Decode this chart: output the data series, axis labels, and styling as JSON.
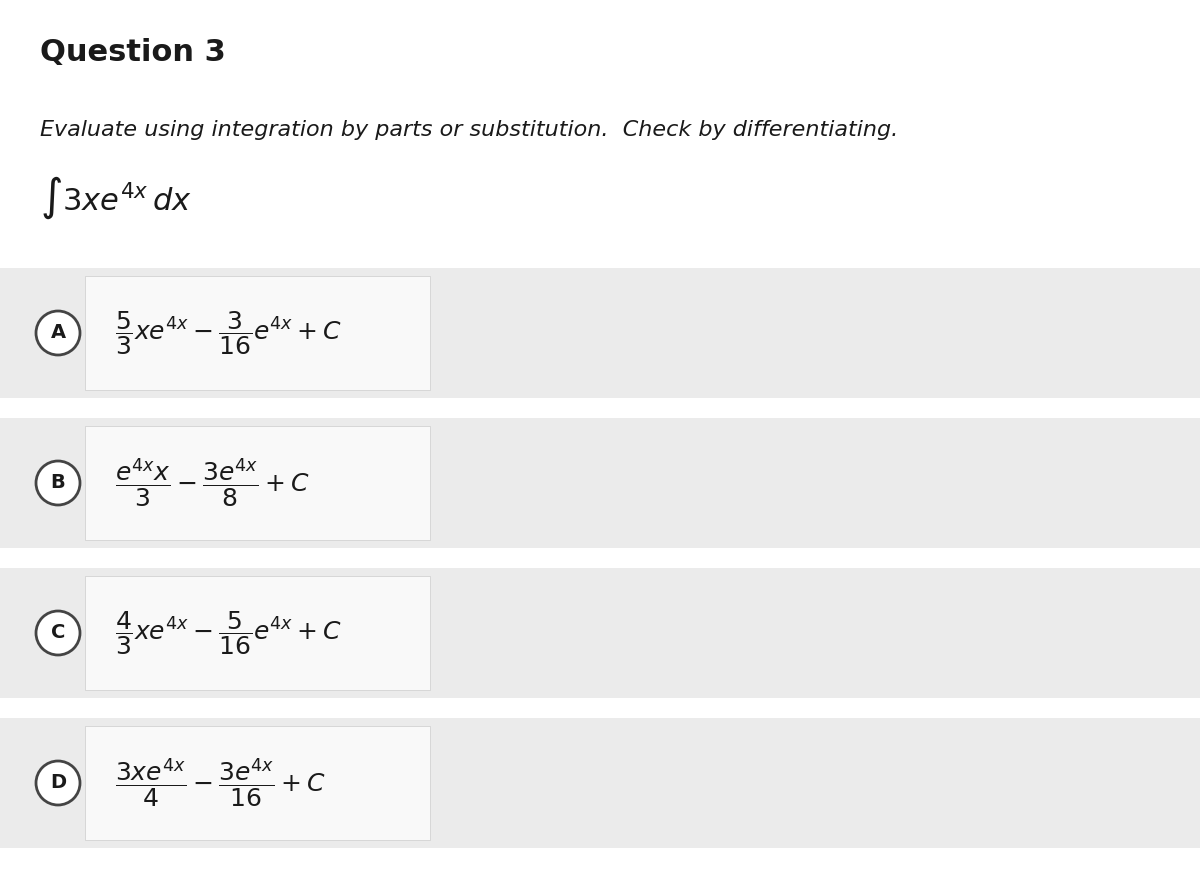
{
  "title": "Question 3",
  "instruction": "Evaluate using integration by parts or substitution.  Check by differentiating.",
  "integral": "$\\int 3xe^{4x}\\, dx$",
  "background_color": "#ffffff",
  "row_bg_color": "#ebebeb",
  "box_bg_color": "#f5f5f5",
  "box_border_color": "#cccccc",
  "title_fontsize": 22,
  "instruction_fontsize": 16,
  "integral_fontsize": 22,
  "formula_fontsize": 18,
  "options": [
    {
      "label": "A",
      "formula": "$\\dfrac{5}{3}xe^{4x} - \\dfrac{3}{16}e^{4x} + C$"
    },
    {
      "label": "B",
      "formula": "$\\dfrac{e^{4x}x}{3} - \\dfrac{3e^{4x}}{8} + C$"
    },
    {
      "label": "C",
      "formula": "$\\dfrac{4}{3}xe^{4x} - \\dfrac{5}{16}e^{4x} + C$"
    },
    {
      "label": "D",
      "formula": "$\\dfrac{3xe^{4x}}{4} - \\dfrac{3e^{4x}}{16} + C$"
    }
  ],
  "fig_width": 12.0,
  "fig_height": 8.8,
  "dpi": 100
}
